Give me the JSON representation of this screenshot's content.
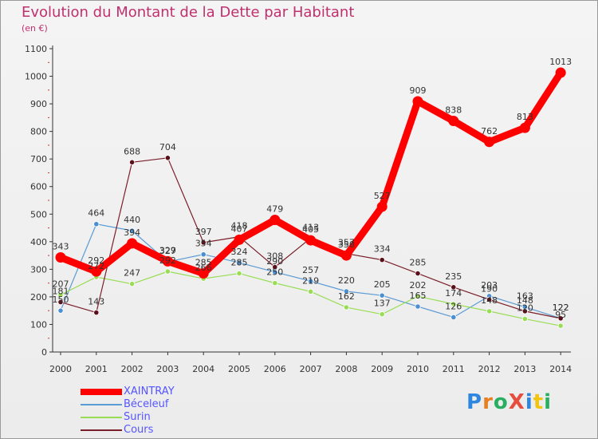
{
  "title": "Evolution du Montant de la Dette par Habitant",
  "subtitle": "(en €)",
  "logo_text": "ProXiti",
  "chart_data": {
    "type": "line",
    "title": "Evolution du Montant de la Dette par Habitant",
    "subtitle": "(en €)",
    "x": [
      2000,
      2001,
      2002,
      2003,
      2004,
      2005,
      2006,
      2007,
      2008,
      2009,
      2010,
      2011,
      2012,
      2013,
      2014
    ],
    "ylim": [
      0,
      1100
    ],
    "yticks": [
      0,
      100,
      200,
      300,
      400,
      500,
      600,
      700,
      800,
      900,
      1000,
      1100
    ],
    "grid": false,
    "legend_position": "bottom-left",
    "series": [
      {
        "name": "XAINTRAY",
        "color": "#ff0000",
        "values": [
          343,
          292,
          394,
          329,
          285,
          407,
          479,
          405,
          350,
          527,
          909,
          838,
          762,
          813,
          1013
        ]
      },
      {
        "name": "Béceleuf",
        "color": "#5b9bd5",
        "values": [
          150,
          464,
          440,
          327,
          354,
          324,
          290,
          257,
          220,
          205,
          165,
          126,
          203,
          163,
          122
        ]
      },
      {
        "name": "Surin",
        "color": "#99dd55",
        "values": [
          207,
          272,
          247,
          292,
          266,
          285,
          250,
          219,
          162,
          137,
          202,
          174,
          148,
          120,
          95
        ]
      },
      {
        "name": "Cours",
        "color": "#7a1f2a",
        "values": [
          181,
          143,
          688,
          704,
          397,
          418,
          308,
          413,
          357,
          334,
          285,
          235,
          190,
          148,
          122
        ]
      }
    ]
  }
}
